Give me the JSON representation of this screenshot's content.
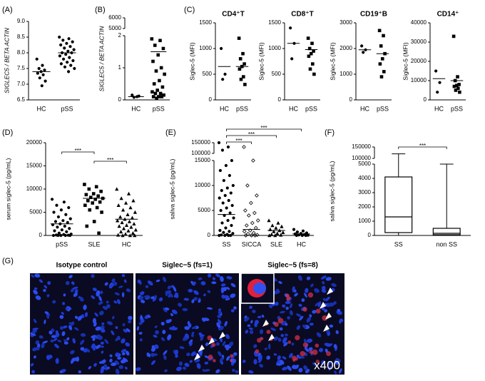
{
  "chart_data": [
    {
      "type": "dot",
      "panel": "(A)",
      "ylabel": "SIGLEC5 / BETA ACTIN",
      "ylim": [
        6.5,
        9.0
      ],
      "yticks": [
        6.5,
        {
          "value": 7,
          "label": "7.0"
        },
        7.5,
        {
          "value": 8,
          "label": "8.0"
        },
        8.5,
        {
          "value": 9,
          "label": "9.0"
        }
      ],
      "groups": [
        {
          "name": "HC",
          "marker": "circle",
          "mean": 7.4,
          "values": [
            7.8,
            7.6,
            7.5,
            7.45,
            7.4,
            7.35,
            7.3,
            7.2,
            7.1,
            6.95
          ]
        },
        {
          "name": "pSS",
          "marker": "circle",
          "mean": 8.0,
          "values": [
            8.5,
            8.45,
            8.4,
            8.35,
            8.3,
            8.25,
            8.2,
            8.15,
            8.1,
            8.05,
            8.0,
            8.0,
            7.95,
            7.9,
            7.85,
            7.8,
            7.75,
            7.7,
            7.65,
            7.6,
            7.55,
            7.5,
            7.4
          ]
        }
      ]
    },
    {
      "type": "dot",
      "panel": "(B)",
      "ylabel": "SIGLEC5 / BETA ACTIN",
      "segments": [
        {
          "ylim": [
            0,
            2
          ],
          "yticks": [
            0,
            1,
            2
          ]
        },
        {
          "ylim": [
            5000,
            6000
          ],
          "yticks": [
            5000,
            6000
          ]
        }
      ],
      "groups": [
        {
          "name": "HC",
          "marker": "circle",
          "mean": 0.1,
          "values": [
            0.15,
            0.1,
            0.08,
            0.12
          ]
        },
        {
          "name": "pSS",
          "marker": "square",
          "mean": 1.5,
          "values": [
            1.9,
            1.85,
            1.7,
            1.6,
            1.4,
            1.2,
            1.0,
            0.9,
            0.8,
            0.6,
            0.5,
            0.4,
            0.3,
            0.25,
            0.2,
            0.2,
            0.15,
            0.1,
            0.1,
            0.1,
            0.05
          ]
        }
      ]
    },
    {
      "type": "dot",
      "panel": "(C)",
      "title": "CD4⁺T",
      "ylabel": "Siglec-5 (MFI)",
      "ylim": [
        0,
        1500
      ],
      "yticks": [
        0,
        500,
        1000,
        1500
      ],
      "groups": [
        {
          "name": "HC",
          "marker": "circle",
          "mean": 650,
          "values": [
            1000,
            500,
            400
          ]
        },
        {
          "name": "pSS",
          "marker": "square",
          "mean": 650,
          "values": [
            1200,
            900,
            800,
            700,
            650,
            600,
            450,
            400,
            300
          ]
        }
      ]
    },
    {
      "type": "dot",
      "title": "CD8⁺T",
      "ylabel": "Siglec-5 (MFI)",
      "ylim": [
        0,
        1500
      ],
      "yticks": [
        0,
        500,
        1000,
        1500
      ],
      "groups": [
        {
          "name": "HC",
          "marker": "circle",
          "mean": 1100,
          "values": [
            1400,
            1100,
            800
          ]
        },
        {
          "name": "pSS",
          "marker": "square",
          "mean": 980,
          "values": [
            1200,
            1100,
            1000,
            950,
            900,
            850,
            700,
            600,
            500
          ]
        }
      ]
    },
    {
      "type": "dot",
      "title": "CD19⁺B",
      "ylabel": "Siglec-5 (MFI)",
      "ylim": [
        0,
        3000
      ],
      "yticks": [
        0,
        1000,
        2000,
        3000
      ],
      "groups": [
        {
          "name": "HC",
          "marker": "circle",
          "mean": 1950,
          "values": [
            2100,
            1950,
            1850
          ]
        },
        {
          "name": "pSS",
          "marker": "square",
          "mean": 1800,
          "values": [
            2700,
            2500,
            2100,
            1800,
            1600,
            1400,
            1100,
            900
          ]
        }
      ]
    },
    {
      "type": "dot",
      "title": "CD14⁺",
      "ylabel": "Siglec-5 (MFI)",
      "ylim": [
        0,
        40000
      ],
      "yticks": [
        0,
        10000,
        20000,
        30000,
        40000
      ],
      "groups": [
        {
          "name": "HC",
          "marker": "circle",
          "mean": 11000,
          "values": [
            15000,
            9000,
            4000
          ]
        },
        {
          "name": "pSS",
          "marker": "square",
          "mean": 10000,
          "values": [
            33000,
            12000,
            10000,
            8000,
            7500,
            7000,
            6000,
            5000,
            4000
          ]
        }
      ]
    },
    {
      "type": "dot",
      "panel": "(D)",
      "ylabel": "serum siglec-5 (pg/mL)",
      "ylim": [
        0,
        20000
      ],
      "yticks": [
        0,
        5000,
        10000,
        15000,
        20000
      ],
      "groups": [
        {
          "name": "pSS",
          "marker": "circle",
          "mean": 2500,
          "values": [
            7800,
            7200,
            6500,
            6000,
            5500,
            5000,
            4500,
            4000,
            3600,
            3200,
            3000,
            2800,
            2500,
            2300,
            2000,
            1800,
            1500,
            1200,
            1000,
            800,
            500,
            300,
            200,
            100,
            50,
            0,
            0,
            0,
            0,
            0
          ]
        },
        {
          "name": "SLE",
          "marker": "square",
          "mean": 8000,
          "values": [
            11000,
            10500,
            10000,
            9500,
            9000,
            8800,
            8500,
            8200,
            8000,
            7800,
            7500,
            7200,
            7000,
            6500,
            6000,
            5500,
            5000,
            3000,
            2000,
            500
          ]
        },
        {
          "name": "HC",
          "marker": "triangle",
          "mean": 3500,
          "values": [
            10000,
            9000,
            8000,
            7500,
            7000,
            6500,
            6000,
            5500,
            5000,
            4500,
            4000,
            3800,
            3500,
            3200,
            3000,
            2800,
            2500,
            2200,
            2000,
            1800,
            1500,
            1200,
            1000,
            800,
            500,
            300,
            100,
            0,
            0,
            0
          ]
        }
      ],
      "comparisons": [
        {
          "label": "***",
          "between": [
            0,
            1
          ]
        },
        {
          "label": "***",
          "between": [
            1,
            2
          ]
        }
      ]
    },
    {
      "type": "dot",
      "panel": "(E)",
      "ylabel": "saliva siglec-5 (pg/mL)",
      "segments": [
        {
          "ylim": [
            0,
            15000
          ],
          "yticks": [
            0,
            5000,
            10000,
            15000
          ]
        },
        {
          "ylim": [
            100000,
            150000
          ],
          "yticks": [
            100000,
            150000
          ]
        }
      ],
      "groups": [
        {
          "name": "SS",
          "marker": "circle",
          "mean": 4200,
          "values": [
            150000,
            130000,
            115000,
            15000,
            14000,
            13000,
            12000,
            11000,
            10000,
            9500,
            9000,
            8500,
            8000,
            7500,
            7000,
            6500,
            6000,
            5500,
            5000,
            4500,
            4000,
            3500,
            3000,
            2500,
            2000,
            1500,
            1000,
            800,
            600,
            400,
            200,
            100,
            0,
            0,
            0,
            0
          ]
        },
        {
          "name": "SICCA",
          "marker": "diamond",
          "mean": 1200,
          "values": [
            130000,
            15000,
            10000,
            8000,
            6500,
            5000,
            4500,
            4000,
            3000,
            2500,
            2000,
            1500,
            1000,
            800,
            500,
            300,
            100,
            0,
            0,
            0
          ]
        },
        {
          "name": "SLE",
          "marker": "triangle",
          "mean": 1000,
          "values": [
            3000,
            2500,
            2000,
            1800,
            1500,
            1200,
            1000,
            800,
            600,
            400,
            200,
            100,
            0,
            0
          ]
        },
        {
          "name": "HC",
          "marker": "circle",
          "mean": 300,
          "values": [
            1200,
            900,
            700,
            500,
            400,
            300,
            200,
            100,
            50,
            0,
            0,
            0
          ]
        }
      ],
      "comparisons": [
        {
          "label": "***",
          "between": [
            0,
            3
          ]
        },
        {
          "label": "***",
          "between": [
            0,
            2
          ]
        },
        {
          "label": "***",
          "between": [
            0,
            1
          ]
        }
      ]
    },
    {
      "type": "box",
      "panel": "(F)",
      "ylabel": "saliva siglec-5 (pg/mL)",
      "segments": [
        {
          "ylim": [
            0,
            5000
          ],
          "yticks": [
            0,
            1000,
            2000,
            3000,
            4000,
            5000
          ]
        },
        {
          "ylim": [
            100000,
            150000
          ],
          "yticks": [
            100000,
            150000
          ]
        }
      ],
      "groups": [
        {
          "name": "SS",
          "min": 0,
          "q1": 200,
          "median": 1300,
          "q3": 4100,
          "max": 120000
        },
        {
          "name": "non SS",
          "min": 0,
          "q1": 50,
          "median": 150,
          "q3": 500,
          "max": 5000
        }
      ],
      "comparisons": [
        {
          "label": "***",
          "between": [
            0,
            1
          ]
        }
      ]
    }
  ],
  "image_panel": {
    "panel": "(G)",
    "images": [
      {
        "title": "Isotype control"
      },
      {
        "title": "Siglec−5 (fs=1)"
      },
      {
        "title": "Siglec−5 (fs=8)"
      }
    ],
    "magnification": "x400"
  }
}
